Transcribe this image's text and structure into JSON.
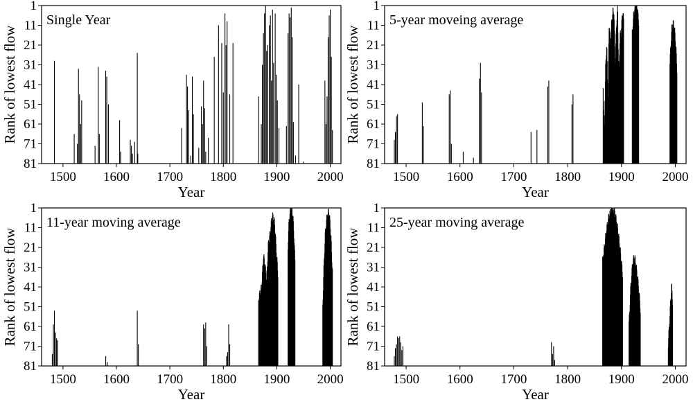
{
  "chart_data": [
    {
      "type": "bar",
      "title": "Single Year",
      "xlabel": "Year",
      "ylabel": "Rank of lowest flow",
      "xlim": [
        1460,
        2020
      ],
      "ylim": [
        81,
        1
      ],
      "xticks": [
        1500,
        1600,
        1700,
        1800,
        1900,
        2000
      ],
      "yticks": [
        1,
        11,
        21,
        31,
        41,
        51,
        61,
        71,
        81
      ],
      "ranges": [],
      "bars": [
        [
          1484,
          29
        ],
        [
          1521,
          66
        ],
        [
          1527,
          71
        ],
        [
          1529,
          33
        ],
        [
          1531,
          46
        ],
        [
          1533,
          61
        ],
        [
          1535,
          49
        ],
        [
          1560,
          72
        ],
        [
          1566,
          32
        ],
        [
          1568,
          66
        ],
        [
          1580,
          34
        ],
        [
          1582,
          37
        ],
        [
          1585,
          51
        ],
        [
          1606,
          59
        ],
        [
          1608,
          75
        ],
        [
          1626,
          69
        ],
        [
          1628,
          72
        ],
        [
          1630,
          76
        ],
        [
          1634,
          70
        ],
        [
          1639,
          25
        ],
        [
          1640,
          76
        ],
        [
          1722,
          63
        ],
        [
          1731,
          36
        ],
        [
          1733,
          42
        ],
        [
          1735,
          54
        ],
        [
          1739,
          77
        ],
        [
          1742,
          37
        ],
        [
          1744,
          56
        ],
        [
          1754,
          73
        ],
        [
          1759,
          52
        ],
        [
          1761,
          61
        ],
        [
          1763,
          39
        ],
        [
          1765,
          53
        ],
        [
          1767,
          75
        ],
        [
          1772,
          68
        ],
        [
          1783,
          27
        ],
        [
          1791,
          11
        ],
        [
          1797,
          20
        ],
        [
          1800,
          45
        ],
        [
          1803,
          5
        ],
        [
          1805,
          21
        ],
        [
          1807,
          9
        ],
        [
          1812,
          46
        ],
        [
          1818,
          20
        ],
        [
          1866,
          47
        ],
        [
          1871,
          61
        ],
        [
          1873,
          31
        ],
        [
          1875,
          15
        ],
        [
          1877,
          5
        ],
        [
          1879,
          1
        ],
        [
          1881,
          24
        ],
        [
          1883,
          21
        ],
        [
          1886,
          11
        ],
        [
          1888,
          6
        ],
        [
          1890,
          39
        ],
        [
          1892,
          3
        ],
        [
          1894,
          30
        ],
        [
          1897,
          5
        ],
        [
          1899,
          36
        ],
        [
          1901,
          49
        ],
        [
          1904,
          63
        ],
        [
          1918,
          62
        ],
        [
          1921,
          15
        ],
        [
          1923,
          5
        ],
        [
          1925,
          7
        ],
        [
          1927,
          2
        ],
        [
          1929,
          17
        ],
        [
          1931,
          60
        ],
        [
          1935,
          77
        ],
        [
          1941,
          41
        ],
        [
          1950,
          80
        ],
        [
          1990,
          39
        ],
        [
          1992,
          61
        ],
        [
          1994,
          47
        ],
        [
          1996,
          17
        ],
        [
          1998,
          6
        ],
        [
          2000,
          3
        ],
        [
          2002,
          27
        ],
        [
          2004,
          64
        ]
      ]
    },
    {
      "type": "bar",
      "title": "5-year moveing average",
      "xlabel": "Year",
      "ylabel": "Rank of lowest flow",
      "xlim": [
        1460,
        2020
      ],
      "ylim": [
        81,
        1
      ],
      "xticks": [
        1500,
        1600,
        1700,
        1800,
        1900,
        2000
      ],
      "yticks": [
        1,
        11,
        21,
        31,
        41,
        51,
        61,
        71,
        81
      ],
      "ranges": [
        {
          "from": 1866,
          "to": 1904,
          "profile": [
            42,
            66,
            33,
            20,
            52,
            8,
            22,
            10,
            4,
            4,
            34,
            11,
            2,
            38,
            16,
            15,
            4,
            8
          ]
        },
        {
          "from": 1920,
          "to": 1932,
          "profile": [
            15,
            5,
            1,
            1,
            9
          ]
        },
        {
          "from": 1990,
          "to": 2003,
          "profile": [
            30,
            20,
            12,
            10,
            11,
            15,
            22,
            33
          ]
        }
      ],
      "bars": [
        [
          1478,
          69
        ],
        [
          1480,
          65
        ],
        [
          1482,
          57
        ],
        [
          1484,
          56
        ],
        [
          1530,
          50
        ],
        [
          1532,
          62
        ],
        [
          1580,
          46
        ],
        [
          1582,
          44
        ],
        [
          1584,
          71
        ],
        [
          1606,
          75
        ],
        [
          1625,
          78
        ],
        [
          1636,
          38
        ],
        [
          1638,
          30
        ],
        [
          1640,
          45
        ],
        [
          1732,
          65
        ],
        [
          1743,
          64
        ],
        [
          1763,
          42
        ],
        [
          1765,
          39
        ],
        [
          1808,
          51
        ],
        [
          1810,
          46
        ]
      ]
    },
    {
      "type": "bar",
      "title": "11-year moving average",
      "xlabel": "Year",
      "ylabel": "Rank of lowest flow",
      "xlim": [
        1460,
        2020
      ],
      "ylim": [
        81,
        1
      ],
      "xticks": [
        1500,
        1600,
        1700,
        1800,
        1900,
        2000
      ],
      "yticks": [
        1,
        11,
        21,
        31,
        41,
        51,
        61,
        71,
        81
      ],
      "ranges": [
        {
          "from": 1866,
          "to": 1902,
          "profile": [
            47,
            44,
            40,
            25,
            30,
            38,
            20,
            15,
            8,
            5,
            9,
            22,
            34
          ]
        },
        {
          "from": 1921,
          "to": 1934,
          "profile": [
            20,
            8,
            3,
            1,
            2,
            6,
            15,
            28
          ]
        },
        {
          "from": 1986,
          "to": 2004,
          "profile": [
            50,
            30,
            15,
            8,
            4,
            3,
            8,
            18,
            33
          ]
        }
      ],
      "bars": [
        [
          1480,
          75
        ],
        [
          1482,
          60
        ],
        [
          1484,
          53
        ],
        [
          1486,
          64
        ],
        [
          1488,
          67
        ],
        [
          1490,
          68
        ],
        [
          1580,
          76
        ],
        [
          1583,
          79
        ],
        [
          1639,
          53
        ],
        [
          1641,
          70
        ],
        [
          1763,
          60
        ],
        [
          1765,
          62
        ],
        [
          1767,
          59
        ],
        [
          1769,
          71
        ],
        [
          1806,
          76
        ],
        [
          1808,
          74
        ],
        [
          1810,
          60
        ],
        [
          1812,
          70
        ]
      ]
    },
    {
      "type": "bar",
      "title": "25-year moving average",
      "xlabel": "Year",
      "ylabel": "Rank of lowest flow",
      "xlim": [
        1460,
        2020
      ],
      "ylim": [
        81,
        1
      ],
      "xticks": [
        1500,
        1600,
        1700,
        1800,
        1900,
        2000
      ],
      "yticks": [
        1,
        11,
        21,
        31,
        41,
        51,
        61,
        71,
        81
      ],
      "ranges": [
        {
          "from": 1865,
          "to": 1902,
          "profile": [
            28,
            20,
            12,
            6,
            3,
            1,
            3,
            8,
            15,
            24,
            34
          ]
        },
        {
          "from": 1914,
          "to": 1935,
          "profile": [
            60,
            40,
            28,
            26,
            32,
            40,
            52
          ]
        },
        {
          "from": 1987,
          "to": 1995,
          "profile": [
            70,
            60,
            50,
            40,
            48
          ]
        }
      ],
      "bars": [
        [
          1478,
          76
        ],
        [
          1480,
          72
        ],
        [
          1482,
          70
        ],
        [
          1484,
          66
        ],
        [
          1486,
          67
        ],
        [
          1488,
          66
        ],
        [
          1490,
          69
        ],
        [
          1492,
          73
        ],
        [
          1494,
          71
        ],
        [
          1770,
          69
        ],
        [
          1772,
          75
        ],
        [
          1774,
          71
        ],
        [
          1776,
          78
        ]
      ]
    }
  ]
}
